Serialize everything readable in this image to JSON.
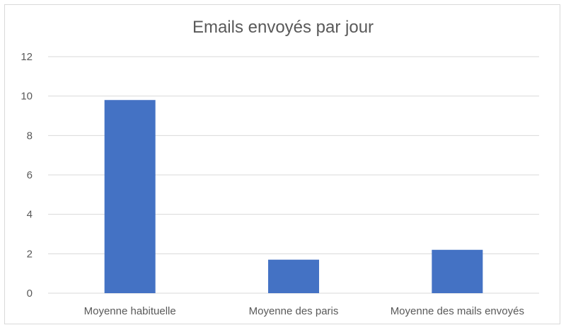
{
  "chart_data": {
    "type": "bar",
    "title": "Emails envoyés par jour",
    "xlabel": "",
    "ylabel": "",
    "categories": [
      "Moyenne habituelle",
      "Moyenne des paris",
      "Moyenne des mails envoyés"
    ],
    "values": [
      9.8,
      1.7,
      2.2
    ],
    "ylim": [
      0,
      12
    ],
    "yticks": [
      0,
      2,
      4,
      6,
      8,
      10,
      12
    ],
    "grid": true,
    "legend": "none",
    "colors": {
      "bar": "#4472C4",
      "grid": "#d9d9d9",
      "text": "#595959"
    }
  }
}
